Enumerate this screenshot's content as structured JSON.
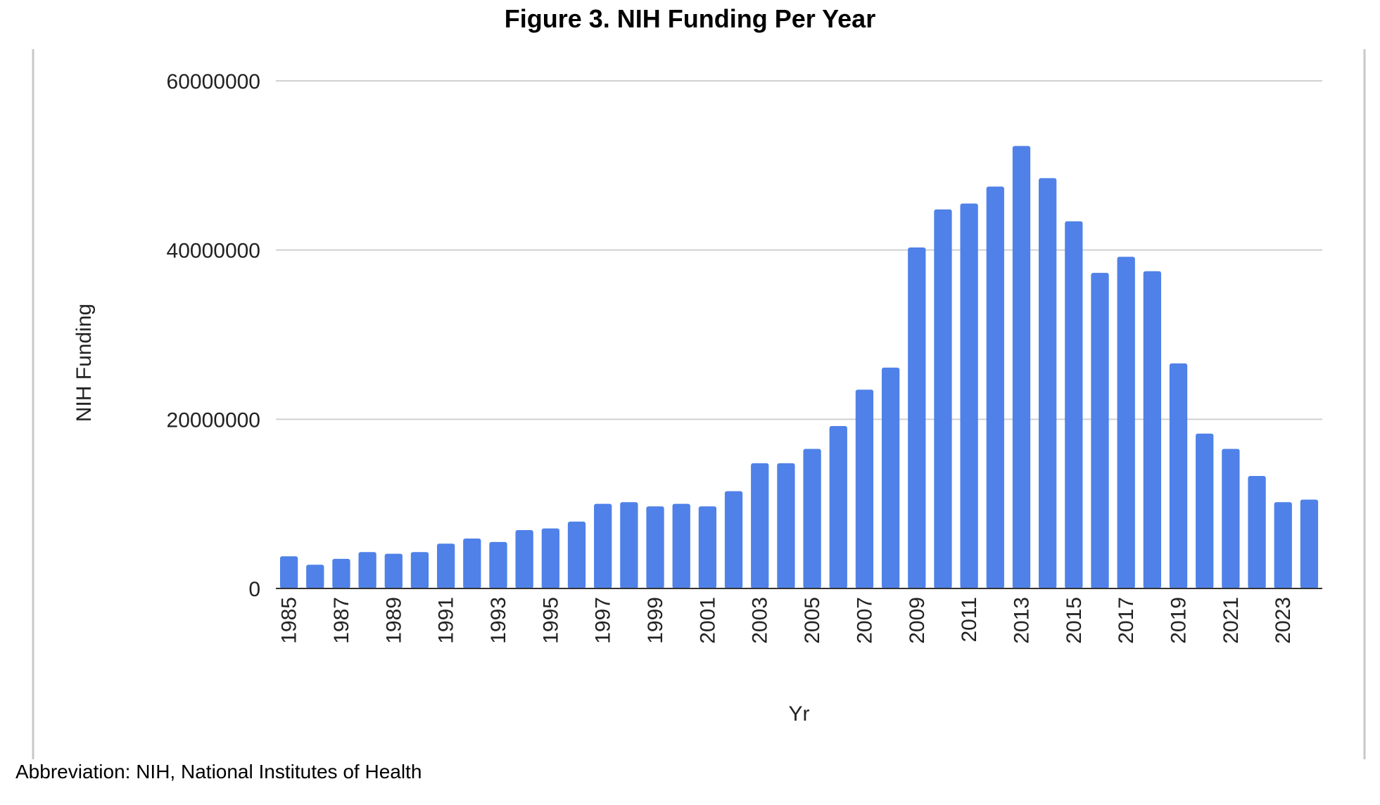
{
  "figure_title": "Figure 3. NIH Funding Per Year",
  "caption": "Abbreviation: NIH, National Institutes of Health",
  "chart_data": {
    "type": "bar",
    "xlabel": "Yr",
    "ylabel": "NIH Funding",
    "ylim": [
      0,
      60000000
    ],
    "yticks": [
      0,
      20000000,
      40000000,
      60000000
    ],
    "ytick_labels": [
      "0",
      "20000000",
      "40000000",
      "60000000"
    ],
    "grid": true,
    "bar_color": "#4f81e8",
    "categories": [
      "1985",
      "1986",
      "1987",
      "1988",
      "1989",
      "1990",
      "1991",
      "1992",
      "1993",
      "1994",
      "1995",
      "1996",
      "1997",
      "1998",
      "1999",
      "2000",
      "2001",
      "2002",
      "2003",
      "2004",
      "2005",
      "2006",
      "2007",
      "2008",
      "2009",
      "2010",
      "2011",
      "2012",
      "2013",
      "2014",
      "2015",
      "2016",
      "2017",
      "2018",
      "2019",
      "2020",
      "2021",
      "2022",
      "2023",
      "2024"
    ],
    "xtick_labels": [
      "1985",
      "1987",
      "1989",
      "1991",
      "1993",
      "1995",
      "1997",
      "1999",
      "2001",
      "2003",
      "2005",
      "2007",
      "2009",
      "2011",
      "2013",
      "2015",
      "2017",
      "2019",
      "2021",
      "2023"
    ],
    "values": [
      3800000,
      2800000,
      3500000,
      4300000,
      4100000,
      4300000,
      5300000,
      5900000,
      5500000,
      6900000,
      7100000,
      7900000,
      10000000,
      10200000,
      9700000,
      10000000,
      9700000,
      11500000,
      14800000,
      14800000,
      16500000,
      19200000,
      23500000,
      26100000,
      40300000,
      44800000,
      45500000,
      47500000,
      52300000,
      48500000,
      43400000,
      37300000,
      39200000,
      37500000,
      26600000,
      18300000,
      16500000,
      13300000,
      10200000,
      10500000
    ]
  }
}
